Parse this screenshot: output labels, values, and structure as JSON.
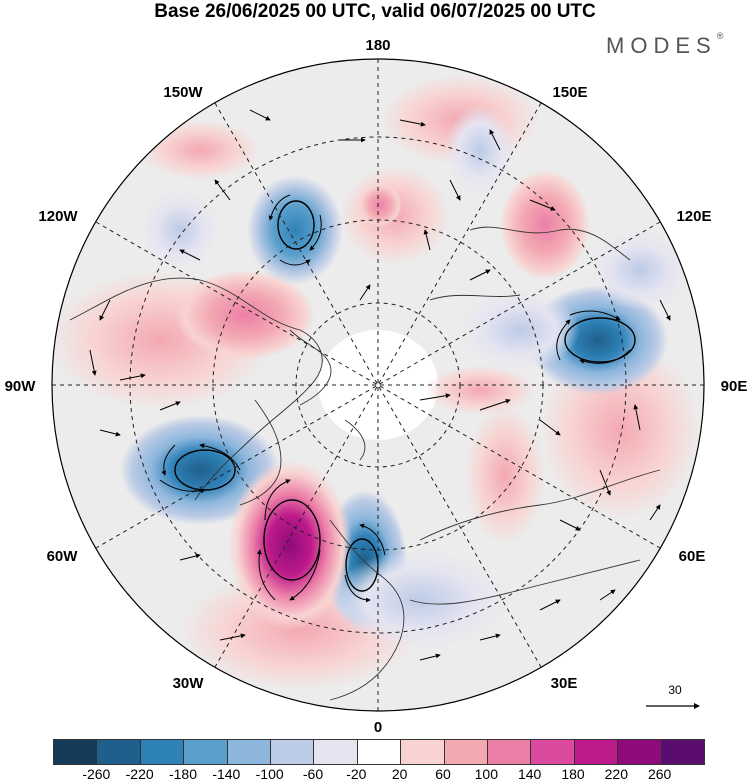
{
  "title": "Base 26/06/2025 00 UTC, valid 06/07/2025 00 UTC",
  "brand": "MODES",
  "brand_mark": "®",
  "lon_labels": {
    "n180": "180",
    "w150": "150W",
    "e150": "150E",
    "w120": "120W",
    "e120": "120E",
    "w90": "90W",
    "e90": "90E",
    "w60": "60W",
    "e60": "60E",
    "w30": "30W",
    "e30": "30E",
    "s0": "0"
  },
  "reference_vector": {
    "label": "30",
    "icon": "right-arrow-icon"
  },
  "colorbar": {
    "colors": [
      "#163b5a",
      "#1f5f8b",
      "#2f82b8",
      "#5a9fcc",
      "#8db6dc",
      "#bccbe6",
      "#e5e4f1",
      "#ffffff",
      "#f8d3d1",
      "#f3a8b2",
      "#ec7fa8",
      "#dc4a9f",
      "#bd1a8a",
      "#8f0a7b",
      "#5a0d6e"
    ],
    "ticks": [
      "-260",
      "-220",
      "-180",
      "-140",
      "-100",
      "-60",
      "-20",
      "20",
      "60",
      "100",
      "140",
      "180",
      "220",
      "260"
    ]
  }
}
